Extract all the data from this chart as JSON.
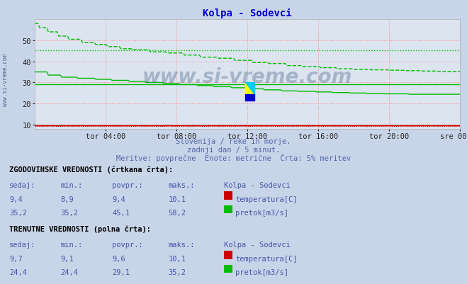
{
  "title": "Kolpa - Sodevci",
  "title_color": "#0000cc",
  "bg_color": "#c8d4e8",
  "plot_bg_color": "#dce4f0",
  "grid_color": "#ff8888",
  "x_labels": [
    "tor 04:00",
    "tor 08:00",
    "tor 12:00",
    "tor 16:00",
    "tor 20:00",
    "sre 00:00"
  ],
  "x_ticks_norm": [
    0.1667,
    0.3333,
    0.5,
    0.6667,
    0.8333,
    1.0
  ],
  "y_min": 8,
  "y_max": 60,
  "y_ticks": [
    10,
    20,
    30,
    40,
    50
  ],
  "watermark": "www.si-vreme.com",
  "watermark_color": "#1a3a6a",
  "subtitle1": "Slovenija / reke in morje.",
  "subtitle2": "zadnji dan / 5 minut.",
  "subtitle3": "Meritve: povprečne  Enote: metrične  Črta: 5% meritev",
  "subtitle_color": "#5566aa",
  "table_header1": "ZGODOVINSKE VREDNOSTI (črtkana črta):",
  "table_header2": "TRENUTNE VREDNOSTI (polna črta):",
  "col_headers": [
    "sedaj:",
    "min.:",
    "povpr.:",
    "maks.:",
    "Kolpa - Sodevci"
  ],
  "hist_temp_vals": [
    "9,4",
    "8,9",
    "9,4",
    "10,1"
  ],
  "hist_flow_vals": [
    "35,2",
    "35,2",
    "45,1",
    "58,2"
  ],
  "curr_temp_vals": [
    "9,7",
    "9,1",
    "9,6",
    "10,1"
  ],
  "curr_flow_vals": [
    "24,4",
    "24,4",
    "29,1",
    "35,2"
  ],
  "temp_label": "temperatura[C]",
  "flow_label": "pretok[m3/s]",
  "temp_color": "#cc0000",
  "flow_color": "#00bb00",
  "avg_flow_hist": 45.1,
  "avg_temp_hist": 9.4,
  "avg_flow_curr": 29.1,
  "avg_temp_curr": 9.6,
  "n_points": 288
}
